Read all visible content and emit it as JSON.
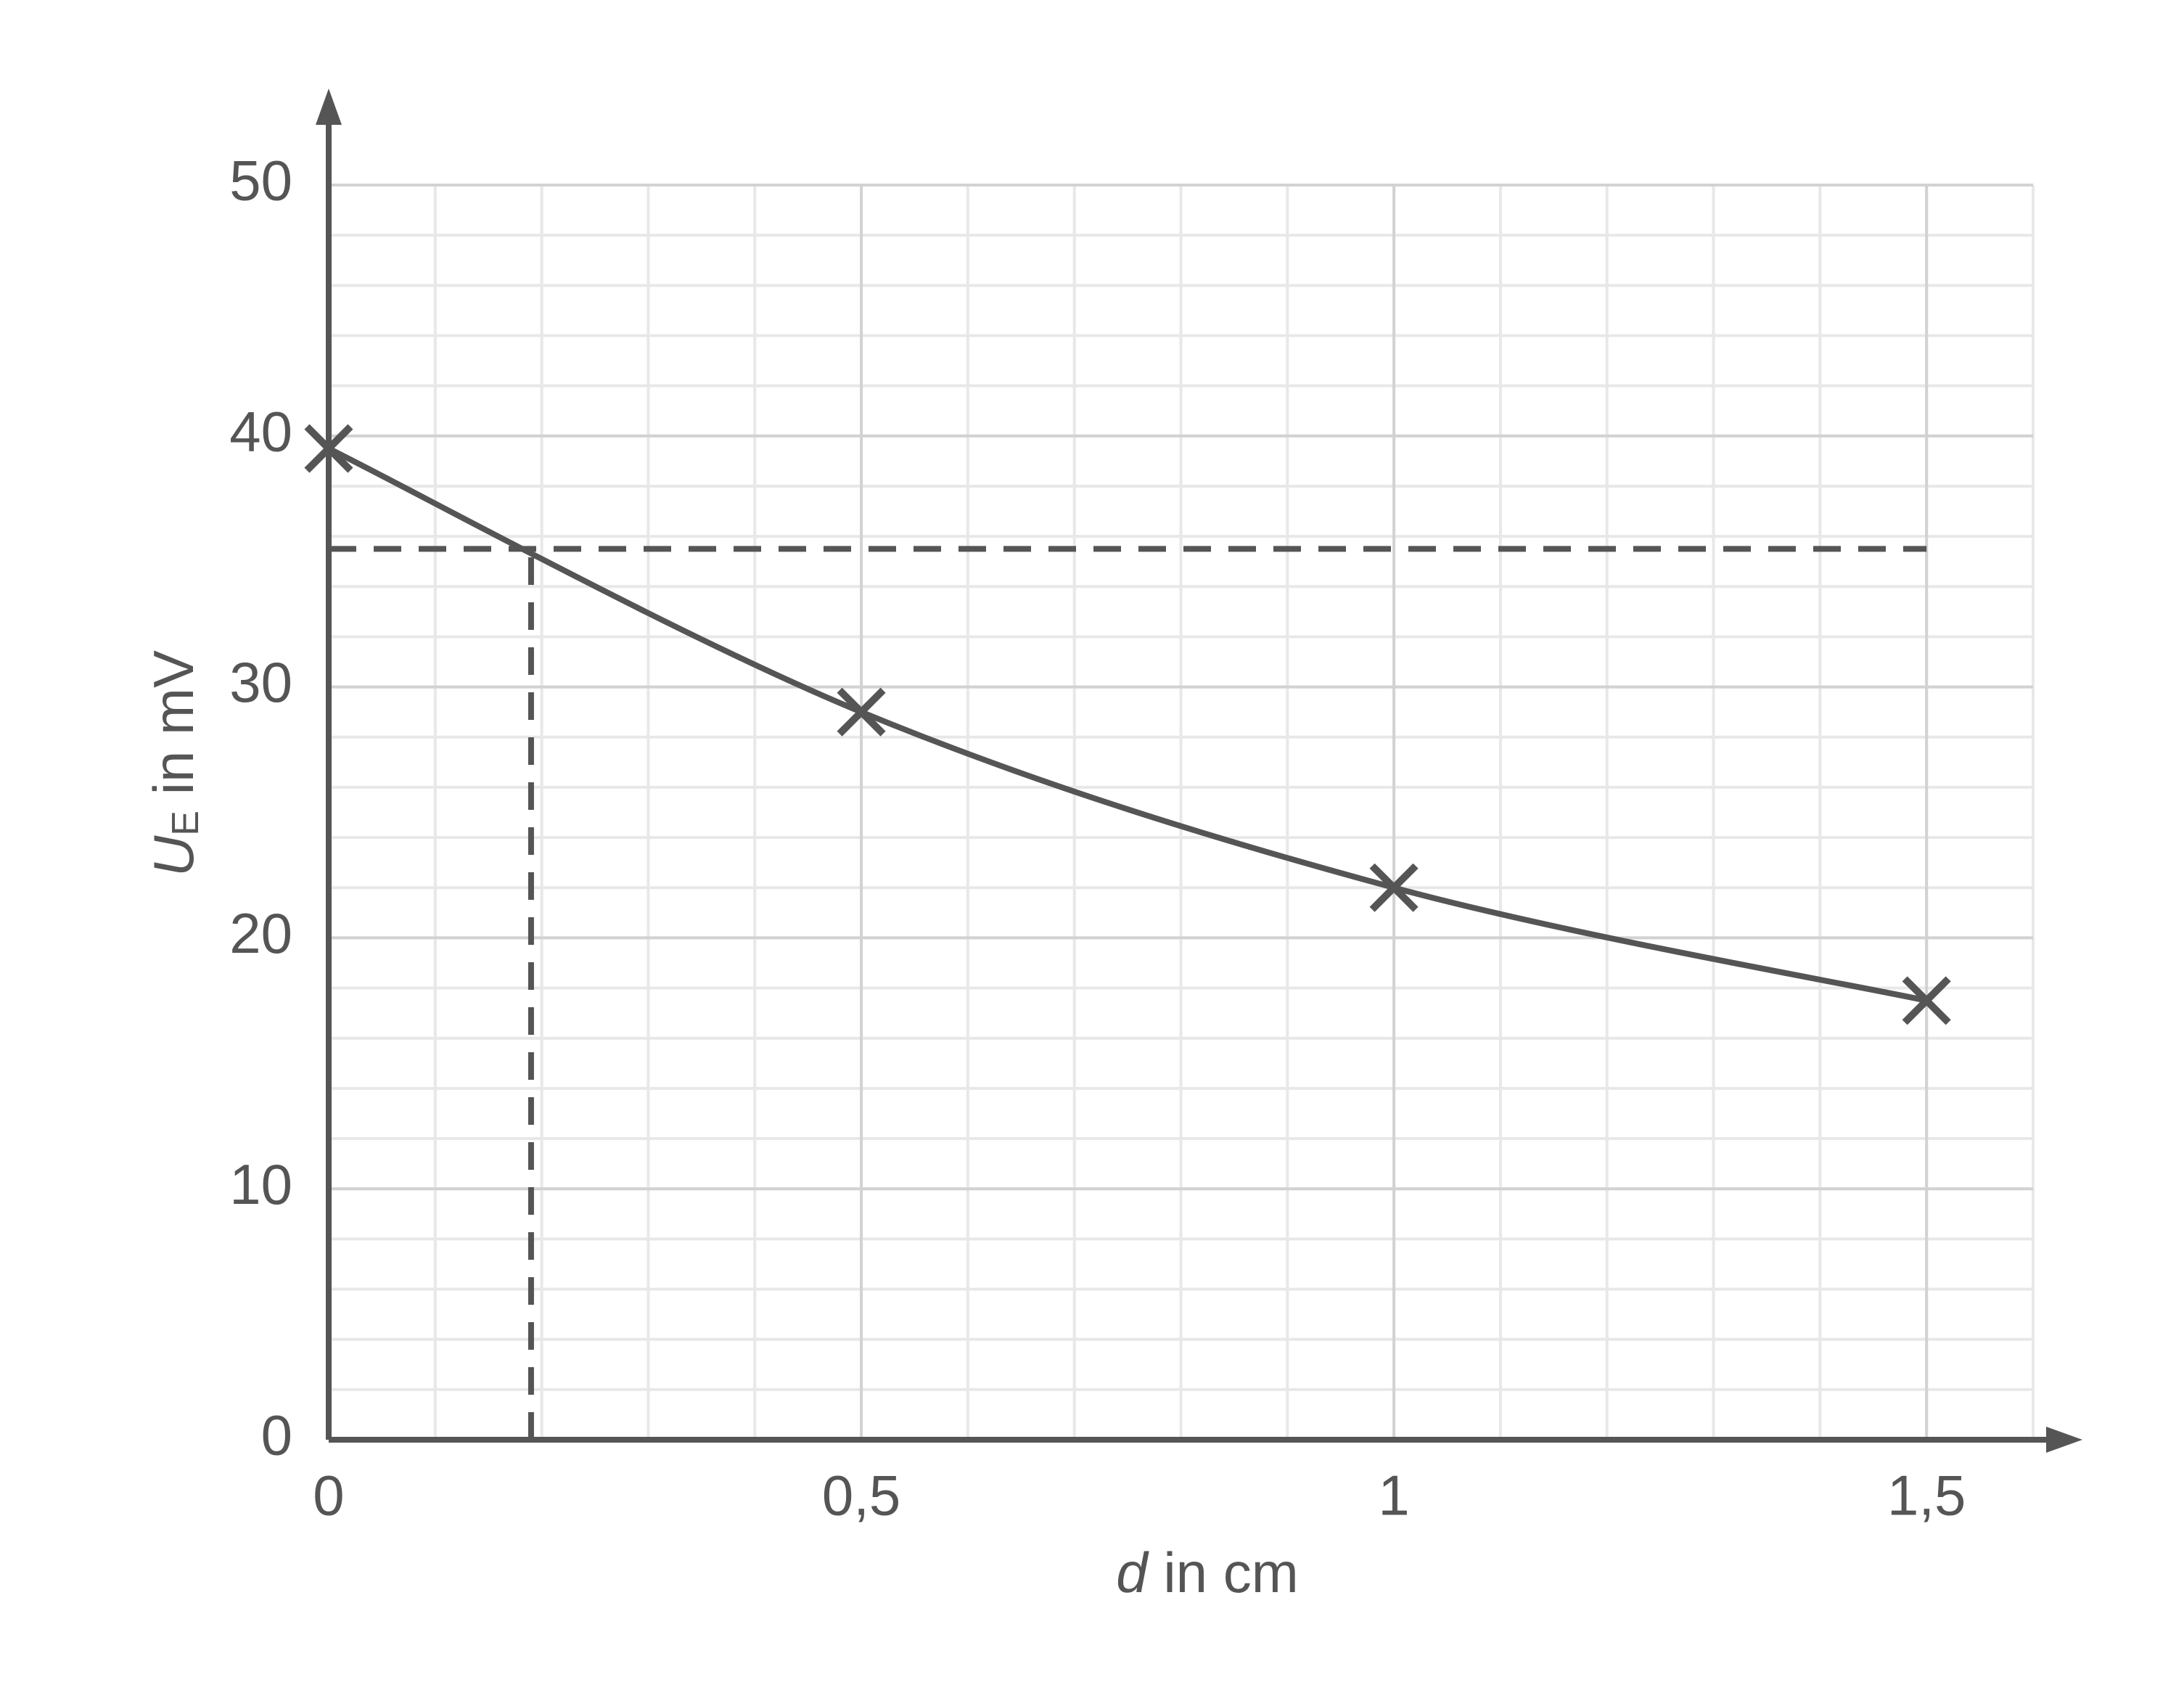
{
  "chart_data": {
    "type": "line",
    "xlabel": {
      "symbol": "d",
      "text": "in cm"
    },
    "ylabel": {
      "symbol": "U",
      "subscript": "E",
      "text": "in mV"
    },
    "x": [
      0,
      0.5,
      1,
      1.5
    ],
    "series": [
      {
        "color": "#555555",
        "values": [
          39.5,
          29,
          22,
          17.5
        ]
      }
    ],
    "xlim": [
      0,
      1.6
    ],
    "ylim": [
      0,
      50
    ],
    "xticks": [
      0,
      {
        "value": 0.5,
        "label": "0,5"
      },
      1,
      {
        "value": 1.5,
        "label": "1,5"
      }
    ],
    "yticks": [
      0,
      10,
      20,
      30,
      40,
      50
    ],
    "minor_xstep": 0.1,
    "minor_ystep": 2,
    "grid": true,
    "guide": {
      "x": 0.19,
      "y": 35.5,
      "x_end": 1.5
    }
  }
}
